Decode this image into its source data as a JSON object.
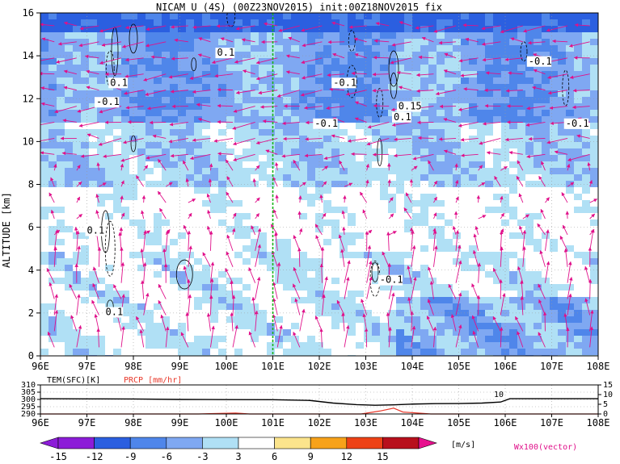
{
  "chart_data": {
    "type": "heatmap",
    "title": "NICAM U (4S) (00Z23NOV2015) init:00Z18NOV2015 fix",
    "main": {
      "ylabel": "ALTITUDE [km]",
      "xlim": [
        96,
        108
      ],
      "ylim": [
        0,
        16
      ],
      "x_ticks": [
        "96E",
        "97E",
        "98E",
        "99E",
        "100E",
        "101E",
        "102E",
        "103E",
        "104E",
        "105E",
        "106E",
        "107E",
        "108E"
      ],
      "y_ticks": [
        "0",
        "2",
        "4",
        "6",
        "8",
        "10",
        "12",
        "14",
        "16"
      ],
      "marker_longitude": 101,
      "contour_labels": [
        {
          "text": "0.1",
          "x": 99.8,
          "y": 14.0
        },
        {
          "text": "0.1",
          "x": 97.5,
          "y": 12.6
        },
        {
          "text": "-0.1",
          "x": 97.2,
          "y": 11.7
        },
        {
          "text": "-0.1",
          "x": 102.3,
          "y": 12.6
        },
        {
          "text": "-0.1",
          "x": 101.9,
          "y": 10.7
        },
        {
          "text": "0.15",
          "x": 103.7,
          "y": 11.5
        },
        {
          "text": "0.1",
          "x": 103.6,
          "y": 11.0
        },
        {
          "text": "-0.1",
          "x": 106.5,
          "y": 13.6
        },
        {
          "text": "-0.1",
          "x": 107.3,
          "y": 10.7
        },
        {
          "text": "0.1",
          "x": 97.0,
          "y": 5.7
        },
        {
          "text": "-0.1",
          "x": 103.3,
          "y": 3.4
        },
        {
          "text": "0.1",
          "x": 97.4,
          "y": 1.9
        }
      ]
    },
    "sub": {
      "left_label": "TEM(SFC)[K]",
      "right_label": "PRCP [mm/hr]",
      "left_ticks": [
        "310",
        "305",
        "300",
        "295",
        "290"
      ],
      "left_range": [
        290,
        310
      ],
      "right_ticks": [
        "15",
        "10",
        "5",
        "0"
      ],
      "right_range": [
        0,
        15
      ],
      "x_ticks": [
        "96E",
        "97E",
        "98E",
        "99E",
        "100E",
        "101E",
        "102E",
        "103E",
        "104E",
        "105E",
        "106E",
        "107E",
        "108E"
      ],
      "tem_x": [
        96,
        97,
        98,
        99,
        100,
        101,
        101.8,
        102.3,
        102.8,
        103.2,
        103.6,
        104,
        104.5,
        105,
        105.5,
        105.9,
        106.1,
        106.5,
        107,
        108
      ],
      "tem_y": [
        300.5,
        300.4,
        300.3,
        300.0,
        299.9,
        299.8,
        299.3,
        297.5,
        296.4,
        296.0,
        296.3,
        296.8,
        297.1,
        297.2,
        297.5,
        298.2,
        300.5,
        300.5,
        300.5,
        300.5
      ],
      "prcp_x": [
        96,
        99.4,
        100.2,
        100.5,
        102.9,
        103.3,
        103.6,
        103.8,
        104.4,
        108
      ],
      "prcp_y": [
        0,
        0,
        0.5,
        0,
        0,
        1.5,
        3.0,
        1.0,
        0,
        0
      ],
      "annotation": "10"
    },
    "colorbar": {
      "labels": [
        "-15",
        "-12",
        "-9",
        "-6",
        "-3",
        "3",
        "6",
        "9",
        "12",
        "15"
      ],
      "colors": [
        "#8c1cd8",
        "#2b5fe0",
        "#4f86ea",
        "#7fa8f2",
        "#b0e0f5",
        "#ffffff",
        "#fbe48c",
        "#f7a21a",
        "#ee4216",
        "#b8101c"
      ],
      "left_end": "#8c1cd8",
      "right_end": "#e8108e",
      "unit": "[m/s]",
      "vector_label": "Wx100(vector)"
    }
  }
}
